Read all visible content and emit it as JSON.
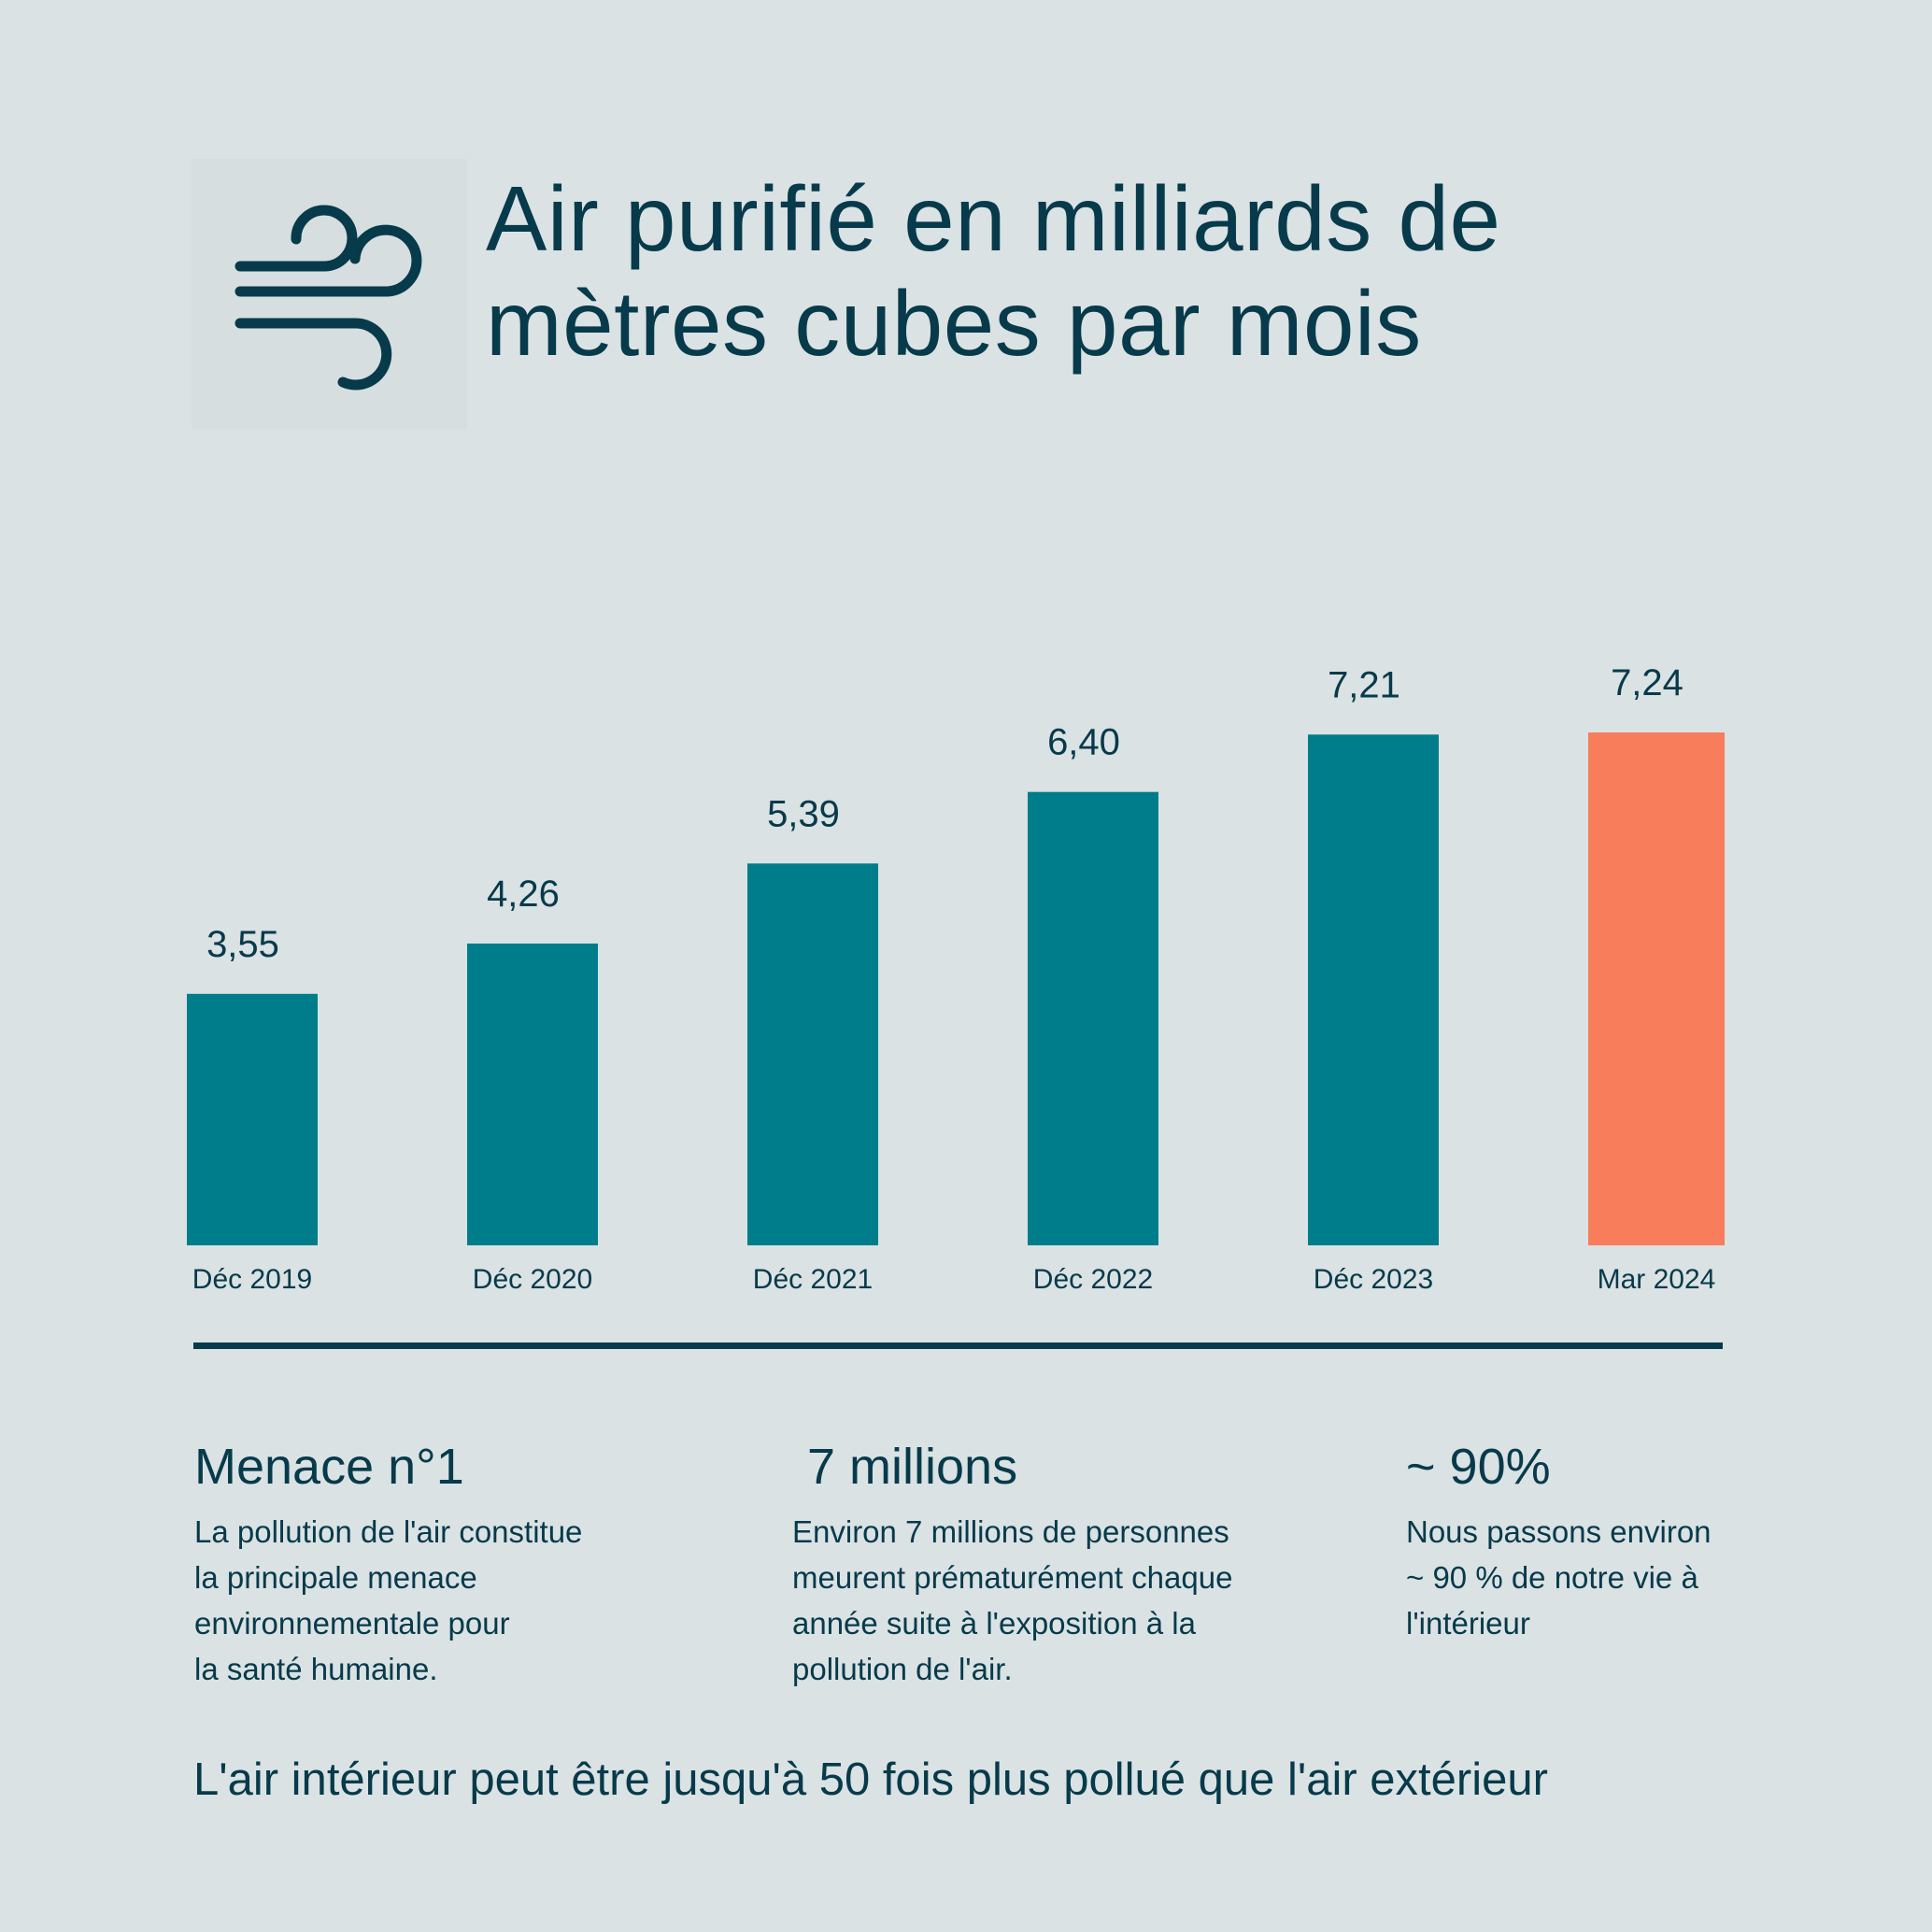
{
  "header": {
    "icon": "wind-icon",
    "title_line1": "Air purifié en milliards de",
    "title_line2": "mètres cubes par mois"
  },
  "colors": {
    "background": "#dae2e4",
    "text": "#073a4a",
    "bar": "#007d8a",
    "highlight_bar": "#f77d5b"
  },
  "chart_data": {
    "type": "bar",
    "categories": [
      "Déc 2019",
      "Déc 2020",
      "Déc 2021",
      "Déc 2022",
      "Déc 2023",
      "Mar 2024"
    ],
    "values": [
      3.55,
      4.26,
      5.39,
      6.4,
      7.21,
      7.24
    ],
    "value_labels": [
      "3,55",
      "4,26",
      "5,39",
      "6,40",
      "7,21",
      "7,24"
    ],
    "highlight_index": 5,
    "ylim": [
      0,
      7.24
    ],
    "grid": false,
    "legend": false
  },
  "stats": [
    {
      "head": "Menace n°1",
      "lines": [
        "La pollution de l'air constitue",
        "la principale menace",
        "environnementale pour",
        "la santé humaine."
      ]
    },
    {
      "head": "7 millions",
      "lines": [
        "Environ 7 millions de personnes",
        "meurent prématurément chaque",
        "année suite à l'exposition à la",
        "pollution de l'air."
      ]
    },
    {
      "head": "~ 90%",
      "lines": [
        "Nous passons environ",
        "~ 90 % de notre vie à",
        "l'intérieur"
      ]
    }
  ],
  "footer": "L'air intérieur peut être jusqu'à 50 fois plus pollué que l'air extérieur"
}
